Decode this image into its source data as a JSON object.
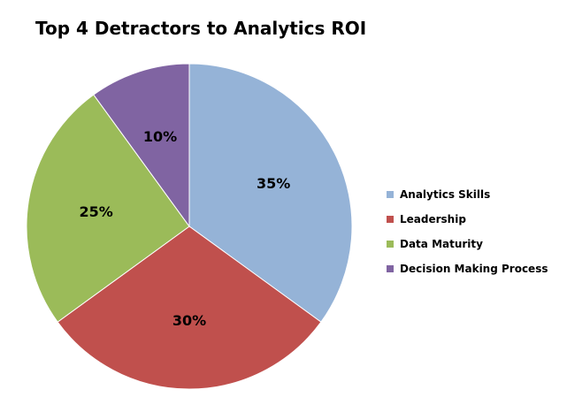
{
  "chart_data": {
    "type": "pie",
    "title": "Top 4 Detractors to Analytics ROI",
    "categories": [
      "Analytics Skills",
      "Leadership",
      "Data Maturity",
      "Decision Making Process"
    ],
    "values": [
      35,
      30,
      25,
      10
    ],
    "data_labels": [
      "35%",
      "30%",
      "25%",
      "10%"
    ],
    "colors": [
      "#95b3d7",
      "#c0504d",
      "#9bbb59",
      "#8064a2"
    ],
    "legend_placement": "right"
  }
}
